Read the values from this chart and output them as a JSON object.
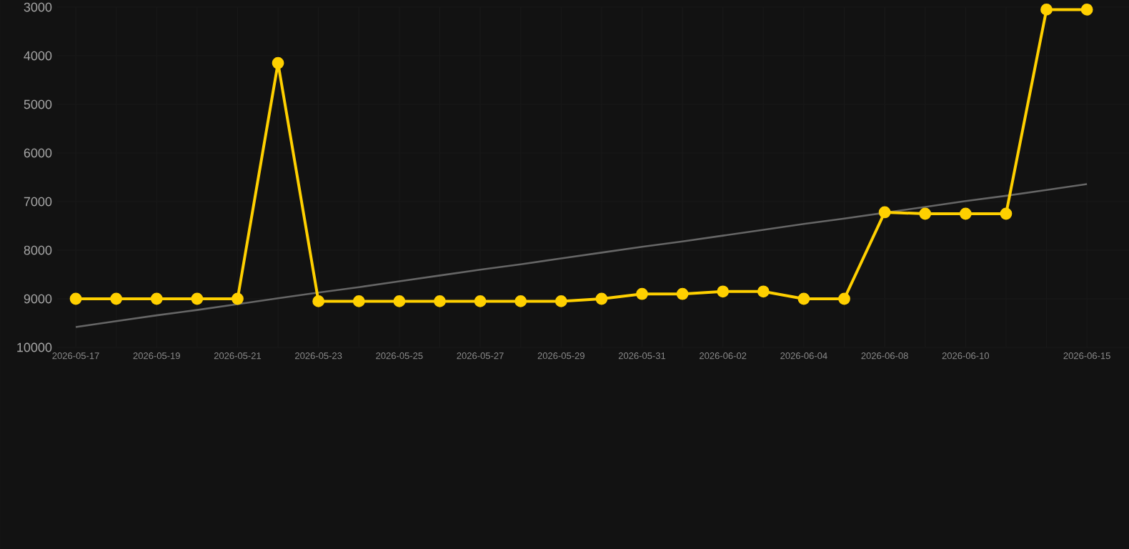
{
  "chart_data": {
    "type": "line",
    "categories": [
      "2026-05-17",
      null,
      "2026-05-19",
      null,
      "2026-05-21",
      null,
      "2026-05-23",
      null,
      "2026-05-25",
      null,
      "2026-05-27",
      null,
      "2026-05-29",
      null,
      "2026-05-31",
      null,
      "2026-06-02",
      null,
      "2026-06-04",
      null,
      "2026-06-08",
      null,
      "2026-06-10",
      null,
      null,
      "2026-06-15"
    ],
    "series": [
      {
        "color": "#ffd000",
        "marker": "circle",
        "values": [
          9000,
          9000,
          9000,
          9000,
          9000,
          4150,
          9050,
          9050,
          9050,
          9050,
          9050,
          9050,
          9050,
          9000,
          8900,
          8900,
          8850,
          8850,
          9000,
          9000,
          7220,
          7250,
          7250,
          7250,
          3050,
          3050
        ]
      },
      {
        "color": "#666666",
        "marker": "none",
        "values": [
          9580,
          9460,
          9340,
          9230,
          9110,
          8990,
          8870,
          8760,
          8640,
          8520,
          8400,
          8290,
          8170,
          8050,
          7930,
          7820,
          7700,
          7580,
          7460,
          7350,
          7230,
          7110,
          6990,
          6880,
          6760,
          6640
        ]
      }
    ],
    "ylim": [
      10000,
      3000
    ],
    "yticks": [
      3000,
      4000,
      5000,
      6000,
      7000,
      8000,
      9000,
      10000
    ],
    "grid": true
  }
}
